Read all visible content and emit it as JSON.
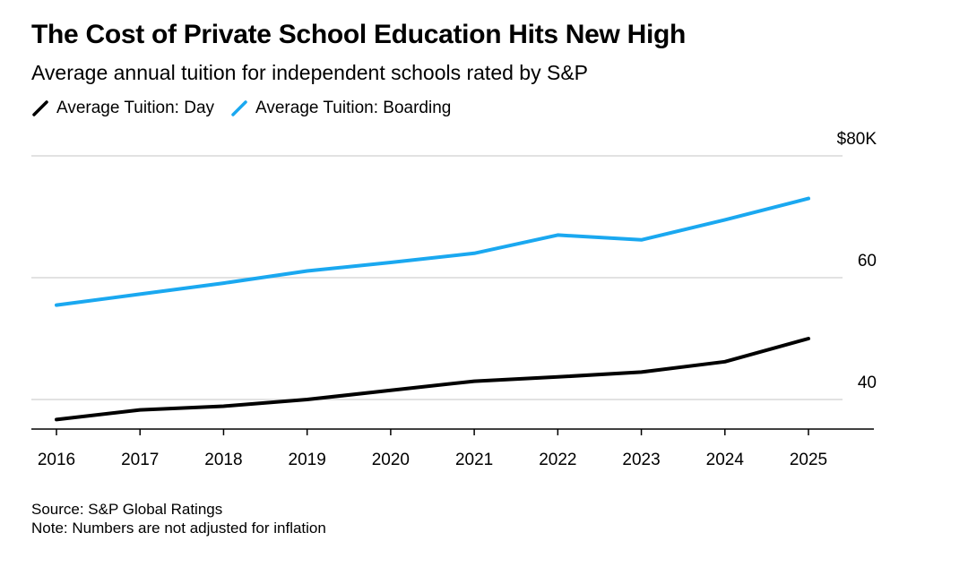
{
  "title": "The Cost of Private School Education Hits New High",
  "subtitle": "Average annual tuition for independent schools rated by S&P",
  "legend": {
    "day_label": "Average Tuition: Day",
    "boarding_label": "Average Tuition: Boarding"
  },
  "colors": {
    "day": "#000000",
    "boarding": "#1aa8f0",
    "grid": "#d9d9d9",
    "axis": "#000000"
  },
  "chart_data": {
    "type": "line",
    "title": "The Cost of Private School Education Hits New High",
    "subtitle": "Average annual tuition for independent schools rated by S&P",
    "x": [
      "2016",
      "2017",
      "2018",
      "2019",
      "2020",
      "2021",
      "2022",
      "2023",
      "2024",
      "2025"
    ],
    "series": [
      {
        "name": "Average Tuition: Day",
        "color": "#000000",
        "values": [
          36.7,
          38.3,
          38.9,
          40.0,
          41.5,
          43.0,
          43.7,
          44.5,
          46.2,
          50.0
        ]
      },
      {
        "name": "Average Tuition: Boarding",
        "color": "#1aa8f0",
        "values": [
          55.5,
          57.3,
          59.1,
          61.1,
          62.5,
          64.0,
          67.0,
          66.2,
          69.5,
          73.0
        ]
      }
    ],
    "y_ticks": [
      {
        "value": 80,
        "label": "$80K"
      },
      {
        "value": 60,
        "label": "60"
      },
      {
        "value": 40,
        "label": "40"
      }
    ],
    "ylim": [
      35,
      80
    ],
    "xlabel": "",
    "ylabel": "",
    "grid": true,
    "legend_position": "top-left"
  },
  "footer": {
    "source": "Source: S&P Global Ratings",
    "note": "Note: Numbers are not adjusted for inflation"
  }
}
